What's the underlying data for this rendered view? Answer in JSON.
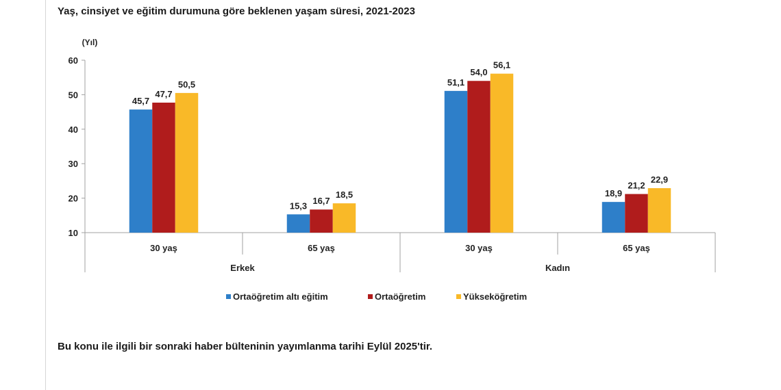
{
  "page": {
    "title": "Yaş, cinsiyet ve eğitim durumuna göre beklenen yaşam süresi, 2021-2023",
    "footnote": "Bu konu ile ilgili bir sonraki haber bülteninin yayımlanma tarihi Eylül 2025'tir."
  },
  "chart_data": {
    "type": "bar",
    "title": "Yaş, cinsiyet ve eğitim durumuna göre beklenen yaşam süresi, 2021-2023",
    "ylabel": "(Yıl)",
    "ylim": [
      10,
      60
    ],
    "yticks": [
      10,
      20,
      30,
      40,
      50,
      60
    ],
    "grid": false,
    "legend_position": "bottom",
    "groups": [
      {
        "label": "Erkek",
        "categories": [
          "30 yaş",
          "65 yaş"
        ]
      },
      {
        "label": "Kadın",
        "categories": [
          "30 yaş",
          "65 yaş"
        ]
      }
    ],
    "categories": [
      "30 yaş",
      "65 yaş",
      "30 yaş",
      "65 yaş"
    ],
    "value_labels": [
      [
        "45,7",
        "15,3",
        "51,1",
        "18,9"
      ],
      [
        "47,7",
        "16,7",
        "54,0",
        "21,2"
      ],
      [
        "50,5",
        "18,5",
        "56,1",
        "22,9"
      ]
    ],
    "series": [
      {
        "name": "Ortaöğretim altı eğitim",
        "color": "#2e7fc9",
        "values": [
          45.7,
          15.3,
          51.1,
          18.9
        ]
      },
      {
        "name": "Ortaöğretim",
        "color": "#b01c1c",
        "values": [
          47.7,
          16.7,
          54.0,
          21.2
        ]
      },
      {
        "name": "Yükseköğretim",
        "color": "#f9b928",
        "values": [
          50.5,
          18.5,
          56.1,
          22.9
        ]
      }
    ]
  }
}
